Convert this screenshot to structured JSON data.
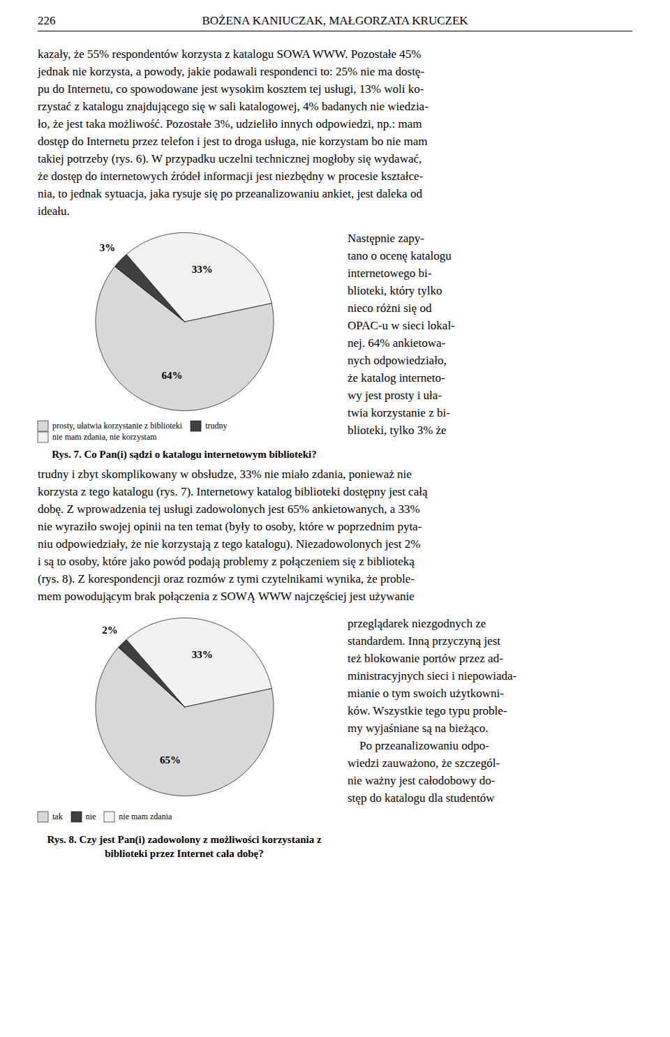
{
  "page_number": "226",
  "header": "BOŻENA KANIUCZAK, MAŁGORZATA KRUCZEK",
  "paragraphs": [
    [
      "kazały, że 55% respondentów korzysta z katalogu SOWA WWW. Pozostałe 45%",
      "jednak nie korzysta, a powody, jakie podawali respondenci to: 25% nie ma dostę-",
      "pu do Internetu, co spowodowane jest wysokim kosztem tej usługi, 13% woli ko-",
      "rzystać z katalogu znajdującego się w sali katalogowej, 4% badanych nie wiedzia-",
      "ło, że jest taka możliwość. Pozostałe 3%, udzieliło innych odpowiedzi, np.: mam",
      "dostęp do Internetu przez telefon i jest to droga usługa, nie korzystam bo nie mam",
      "takiej potrzeby (rys. 6). W przypadku uczelni technicznej mogłoby się wydawać,",
      "że dostęp do internetowych źródeł informacji jest niezbędny w procesie kształce-",
      "nia, to jednak sytuacja, jaka rysuje się po przeanalizowaniu ankiet, jest daleka od",
      "ideału."
    ],
    [
      "trudny i zbyt skomplikowany w obsłudze, 33% nie miało zdania, ponieważ nie",
      "korzysta z tego katalogu (rys. 7). Internetowy katalog biblioteki dostępny jest całą",
      "dobę. Z wprowadzenia tej usługi zadowolonych jest 65% ankietowanych, a 33%",
      "nie wyraziło swojej opinii na ten temat (były to osoby, które w poprzednim pyta-",
      "niu odpowiedziały, że nie korzystają z tego katalogu). Niezadowolonych jest 2%",
      "i są to osoby, które jako powód podają problemy z połączeniem się z biblioteką",
      "(rys. 8). Z korespondencji oraz rozmów z tymi czytelnikami wynika, że proble-",
      "mem powodującym brak połączenia z SOWĄ WWW najczęściej jest używanie"
    ]
  ],
  "columns": [
    [
      "Następnie zapy-",
      "tano o ocenę katalogu",
      "internetowego bi-",
      "blioteki, który tylko",
      "nieco różni się od",
      "OPAC-u w sieci lokal-",
      "nej. 64% ankietowa-",
      "nych odpowiedziało,",
      "że katalog interneto-",
      "wy jest prosty i uła-",
      "twia korzystanie z bi-",
      "blioteki, tylko 3% że"
    ],
    [
      "przeglądarek niezgodnych ze",
      "standardem. Inną przyczyną jest",
      "też blokowanie portów przez ad-",
      "ministracyjnych sieci i niepowiada-",
      "mianie o tym swoich użytkowni-",
      "ków. Wszystkie tego typu proble-",
      "my wyjaśniane są na bieżąco.",
      "    Po przeanalizowaniu odpo-",
      "wiedzi zauważono, że szczegól-",
      "nie ważny jest całodobowy do-",
      "stęp do katalogu dla studentów"
    ]
  ],
  "chart_data": [
    {
      "type": "pie",
      "title": "Rys. 7. Co Pan(i) sądzi o katalogu internetowym biblioteki?",
      "categories": [
        "prosty, ułatwia korzystanie z biblioteki",
        "trudny",
        "nie mam zdania, nie korzystam"
      ],
      "values": [
        64,
        3,
        33
      ],
      "value_labels": [
        "64%",
        "3%",
        "33%"
      ],
      "colors": [
        "#d8d8d8",
        "#404040",
        "#f2f2f2"
      ],
      "data_labels": true,
      "legend": "bottom"
    },
    {
      "type": "pie",
      "title": "Rys. 8. Czy jest Pan(i) zadowolony z możliwości korzystania z biblioteki przez Internet cała dobę?",
      "categories": [
        "tak",
        "nie",
        "nie mam zdania"
      ],
      "values": [
        65,
        2,
        33
      ],
      "value_labels": [
        "65%",
        "2%",
        "33%"
      ],
      "colors": [
        "#d8d8d8",
        "#404040",
        "#f2f2f2"
      ],
      "data_labels": true,
      "legend": "bottom"
    }
  ]
}
